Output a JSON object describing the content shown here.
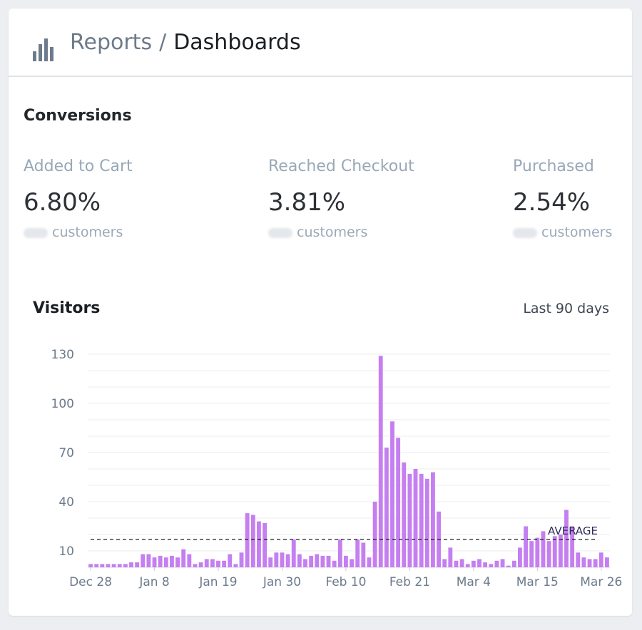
{
  "header": {
    "icon": "bar-chart-icon",
    "crumb_reports": "Reports",
    "crumb_separator": "/",
    "crumb_current": "Dashboards"
  },
  "conversions": {
    "title": "Conversions",
    "metrics": [
      {
        "label": "Added to Cart",
        "value": "6.80%",
        "sub": "customers"
      },
      {
        "label": "Reached Checkout",
        "value": "3.81%",
        "sub": "customers"
      },
      {
        "label": "Purchased",
        "value": "2.54%",
        "sub": "customers"
      }
    ]
  },
  "visitors": {
    "title": "Visitors",
    "range": "Last 90 days"
  },
  "chart_data": {
    "type": "bar",
    "title": "Visitors",
    "bar_color": "#c57ff0",
    "average_line_color": "#1b1e22",
    "ylim": [
      0,
      130
    ],
    "yticks": [
      10,
      40,
      70,
      100,
      130
    ],
    "xtick_labels": [
      "Dec 28",
      "Jan 8",
      "Jan 19",
      "Jan 30",
      "Feb 10",
      "Feb 21",
      "Mar 4",
      "Mar 15",
      "Mar 26"
    ],
    "xtick_indices": [
      0,
      11,
      22,
      33,
      44,
      55,
      66,
      77,
      88
    ],
    "average": {
      "label": "AVERAGE",
      "value": 17
    },
    "values": [
      2,
      2,
      2,
      2,
      2,
      2,
      2,
      3,
      3,
      8,
      8,
      6,
      7,
      6,
      7,
      6,
      11,
      8,
      2,
      3,
      5,
      5,
      4,
      4,
      8,
      2,
      9,
      33,
      32,
      28,
      27,
      6,
      9,
      9,
      8,
      17,
      8,
      5,
      7,
      8,
      7,
      7,
      4,
      17,
      7,
      5,
      17,
      15,
      6,
      40,
      129,
      73,
      89,
      79,
      64,
      57,
      60,
      57,
      54,
      58,
      34,
      5,
      12,
      4,
      5,
      2,
      4,
      5,
      3,
      2,
      4,
      5,
      1,
      4,
      12,
      25,
      16,
      18,
      22,
      16,
      19,
      20,
      35,
      25,
      9,
      6,
      5,
      5,
      9,
      6
    ]
  }
}
